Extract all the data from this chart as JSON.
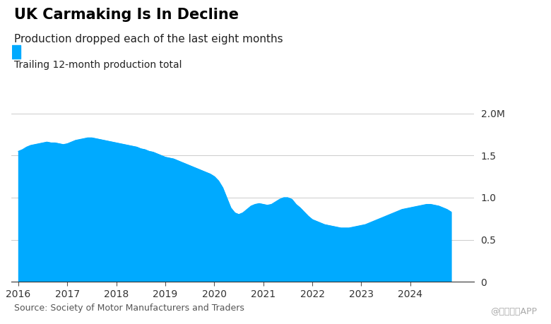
{
  "title": "UK Carmaking Is In Decline",
  "subtitle": "Production dropped each of the last eight months",
  "legend_label": "Trailing 12-month production total",
  "source": "Source: Society of Motor Manufacturers and Traders",
  "watermark": "@智通财经APP",
  "fill_color": "#00AAFF",
  "background_color": "#FFFFFF",
  "ylim": [
    0,
    2.0
  ],
  "yticks": [
    0,
    0.5,
    1.0,
    1.5,
    2.0
  ],
  "ytick_labels": [
    "0",
    "0.5",
    "1.0",
    "1.5",
    "2.0M"
  ],
  "x_years": [
    2016,
    2017,
    2018,
    2019,
    2020,
    2021,
    2022,
    2023,
    2024
  ],
  "xlim_left": 2015.85,
  "xlim_right": 2025.3,
  "data": {
    "dates": [
      2016.0,
      2016.083,
      2016.167,
      2016.25,
      2016.333,
      2016.417,
      2016.5,
      2016.583,
      2016.667,
      2016.75,
      2016.833,
      2016.917,
      2017.0,
      2017.083,
      2017.167,
      2017.25,
      2017.333,
      2017.417,
      2017.5,
      2017.583,
      2017.667,
      2017.75,
      2017.833,
      2017.917,
      2018.0,
      2018.083,
      2018.167,
      2018.25,
      2018.333,
      2018.417,
      2018.5,
      2018.583,
      2018.667,
      2018.75,
      2018.833,
      2018.917,
      2019.0,
      2019.083,
      2019.167,
      2019.25,
      2019.333,
      2019.417,
      2019.5,
      2019.583,
      2019.667,
      2019.75,
      2019.833,
      2019.917,
      2020.0,
      2020.083,
      2020.167,
      2020.25,
      2020.333,
      2020.417,
      2020.5,
      2020.583,
      2020.667,
      2020.75,
      2020.833,
      2020.917,
      2021.0,
      2021.083,
      2021.167,
      2021.25,
      2021.333,
      2021.417,
      2021.5,
      2021.583,
      2021.667,
      2021.75,
      2021.833,
      2021.917,
      2022.0,
      2022.083,
      2022.167,
      2022.25,
      2022.333,
      2022.417,
      2022.5,
      2022.583,
      2022.667,
      2022.75,
      2022.833,
      2022.917,
      2023.0,
      2023.083,
      2023.167,
      2023.25,
      2023.333,
      2023.417,
      2023.5,
      2023.583,
      2023.667,
      2023.75,
      2023.833,
      2023.917,
      2024.0,
      2024.083,
      2024.167,
      2024.25,
      2024.333,
      2024.417,
      2024.5,
      2024.583,
      2024.667,
      2024.75,
      2024.833
    ],
    "values": [
      1.55,
      1.57,
      1.6,
      1.62,
      1.63,
      1.64,
      1.65,
      1.66,
      1.65,
      1.65,
      1.64,
      1.63,
      1.64,
      1.66,
      1.68,
      1.69,
      1.7,
      1.71,
      1.71,
      1.7,
      1.69,
      1.68,
      1.67,
      1.66,
      1.65,
      1.64,
      1.63,
      1.62,
      1.61,
      1.6,
      1.58,
      1.57,
      1.55,
      1.54,
      1.52,
      1.5,
      1.48,
      1.47,
      1.46,
      1.44,
      1.42,
      1.4,
      1.38,
      1.36,
      1.34,
      1.32,
      1.3,
      1.28,
      1.25,
      1.2,
      1.12,
      1.0,
      0.88,
      0.82,
      0.8,
      0.82,
      0.86,
      0.9,
      0.92,
      0.93,
      0.92,
      0.91,
      0.92,
      0.95,
      0.98,
      1.0,
      1.0,
      0.98,
      0.92,
      0.88,
      0.83,
      0.78,
      0.74,
      0.72,
      0.7,
      0.68,
      0.67,
      0.66,
      0.65,
      0.64,
      0.64,
      0.64,
      0.65,
      0.66,
      0.67,
      0.68,
      0.7,
      0.72,
      0.74,
      0.76,
      0.78,
      0.8,
      0.82,
      0.84,
      0.86,
      0.87,
      0.88,
      0.89,
      0.9,
      0.91,
      0.92,
      0.92,
      0.91,
      0.9,
      0.88,
      0.86,
      0.83
    ]
  }
}
